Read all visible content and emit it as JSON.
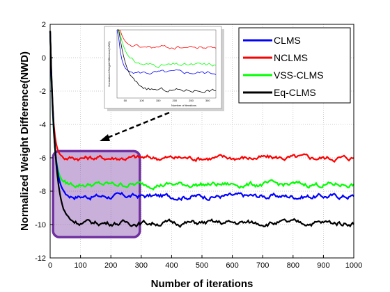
{
  "chart_data": {
    "type": "line",
    "xlabel": "Number of iterations",
    "ylabel": "Normalized Weight Difference(NWD)",
    "xlim": [
      0,
      1000
    ],
    "ylim": [
      -12,
      2
    ],
    "xticks": [
      0,
      100,
      200,
      300,
      400,
      500,
      600,
      700,
      800,
      900,
      1000
    ],
    "yticks": [
      2,
      0,
      -2,
      -4,
      -6,
      -8,
      -10,
      -12
    ],
    "grid": true,
    "legend_position": "top-right",
    "series": [
      {
        "name": "CLMS",
        "color": "#0000ff",
        "start": 1.6,
        "steady": -8.3,
        "tau": 13
      },
      {
        "name": "NCLMS",
        "color": "#ff0000",
        "start": 1.6,
        "steady": -6.0,
        "tau": 9
      },
      {
        "name": "VSS-CLMS",
        "color": "#00ff00",
        "start": 1.6,
        "steady": -7.6,
        "tau": 11
      },
      {
        "name": "Eq-CLMS",
        "color": "#000000",
        "start": 1.6,
        "steady": -9.9,
        "tau": 17
      }
    ],
    "highlight_region": {
      "x": [
        5,
        300
      ],
      "y": [
        -12,
        -5.6
      ],
      "color": "#7030a0"
    },
    "inset": {
      "ylabel": "Normalized Weight Difference(NWD)",
      "xlabel": "Number of iterations",
      "xticks": [
        50,
        100,
        150,
        200,
        250,
        300
      ],
      "levels": [
        -6.0,
        -7.6,
        -8.3,
        -9.9
      ]
    }
  }
}
